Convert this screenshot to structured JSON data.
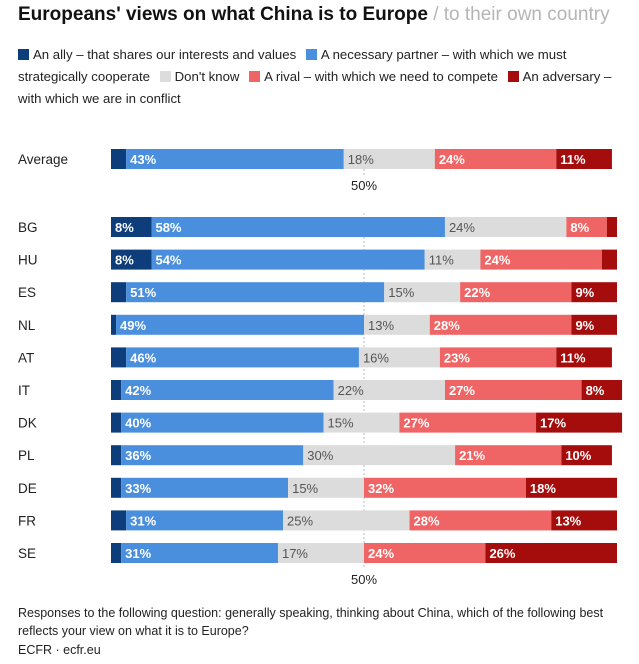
{
  "header": {
    "title": "Europeans' views on what China is to Europe",
    "separator": "/",
    "alt_view": "to their own country"
  },
  "legend": [
    {
      "label": "An ally – that shares our interests and values",
      "color": "#0d3d7a"
    },
    {
      "label": "A necessary partner – with which we must strategically cooperate",
      "color": "#4a8fde"
    },
    {
      "label": "Don't know",
      "color": "#dcdcdc"
    },
    {
      "label": "A rival – with which we need to compete",
      "color": "#ef6464"
    },
    {
      "label": "An adversary – with which we are in conflict",
      "color": "#a50d0d"
    }
  ],
  "chart_data": {
    "type": "bar",
    "orientation": "horizontal",
    "stacked": true,
    "categories": [
      "Average",
      "BG",
      "HU",
      "ES",
      "NL",
      "AT",
      "IT",
      "DK",
      "PL",
      "DE",
      "FR",
      "SE"
    ],
    "series": [
      {
        "name": "An ally – that shares our interests and values",
        "color": "#0d3d7a",
        "values": [
          3,
          8,
          8,
          3,
          1,
          3,
          2,
          2,
          2,
          2,
          3,
          2
        ],
        "labels": [
          "",
          "8%",
          "8%",
          "",
          "",
          "",
          "",
          "",
          "",
          "",
          "",
          ""
        ]
      },
      {
        "name": "A necessary partner – with which we must strategically cooperate",
        "color": "#4a8fde",
        "values": [
          43,
          58,
          54,
          51,
          49,
          46,
          42,
          40,
          36,
          33,
          31,
          31
        ],
        "labels": [
          "43%",
          "58%",
          "54%",
          "51%",
          "49%",
          "46%",
          "42%",
          "40%",
          "36%",
          "33%",
          "31%",
          "31%"
        ]
      },
      {
        "name": "Don't know",
        "color": "#dcdcdc",
        "values": [
          18,
          24,
          11,
          15,
          13,
          16,
          22,
          15,
          30,
          15,
          25,
          17
        ],
        "labels": [
          "18%",
          "24%",
          "11%",
          "15%",
          "13%",
          "16%",
          "22%",
          "15%",
          "30%",
          "15%",
          "25%",
          "17%"
        ]
      },
      {
        "name": "A rival – with which we need to compete",
        "color": "#ef6464",
        "values": [
          24,
          8,
          24,
          22,
          28,
          23,
          27,
          27,
          21,
          32,
          28,
          24
        ],
        "labels": [
          "24%",
          "8%",
          "24%",
          "22%",
          "28%",
          "23%",
          "27%",
          "27%",
          "21%",
          "32%",
          "28%",
          "24%"
        ]
      },
      {
        "name": "An adversary – with which we are in conflict",
        "color": "#a50d0d",
        "values": [
          11,
          2,
          3,
          9,
          9,
          11,
          8,
          17,
          10,
          18,
          13,
          26
        ],
        "labels": [
          "11%",
          "",
          "",
          "9%",
          "9%",
          "11%",
          "8%",
          "17%",
          "10%",
          "18%",
          "13%",
          "26%"
        ]
      }
    ],
    "xlim": [
      0,
      100
    ],
    "reference_line": {
      "value": 50,
      "label": "50%"
    },
    "grid": false
  },
  "footnote": "Responses to the following question: generally speaking, thinking about China, which of the following best reflects your view on what it is to Europe?",
  "source": "ECFR · ecfr.eu"
}
